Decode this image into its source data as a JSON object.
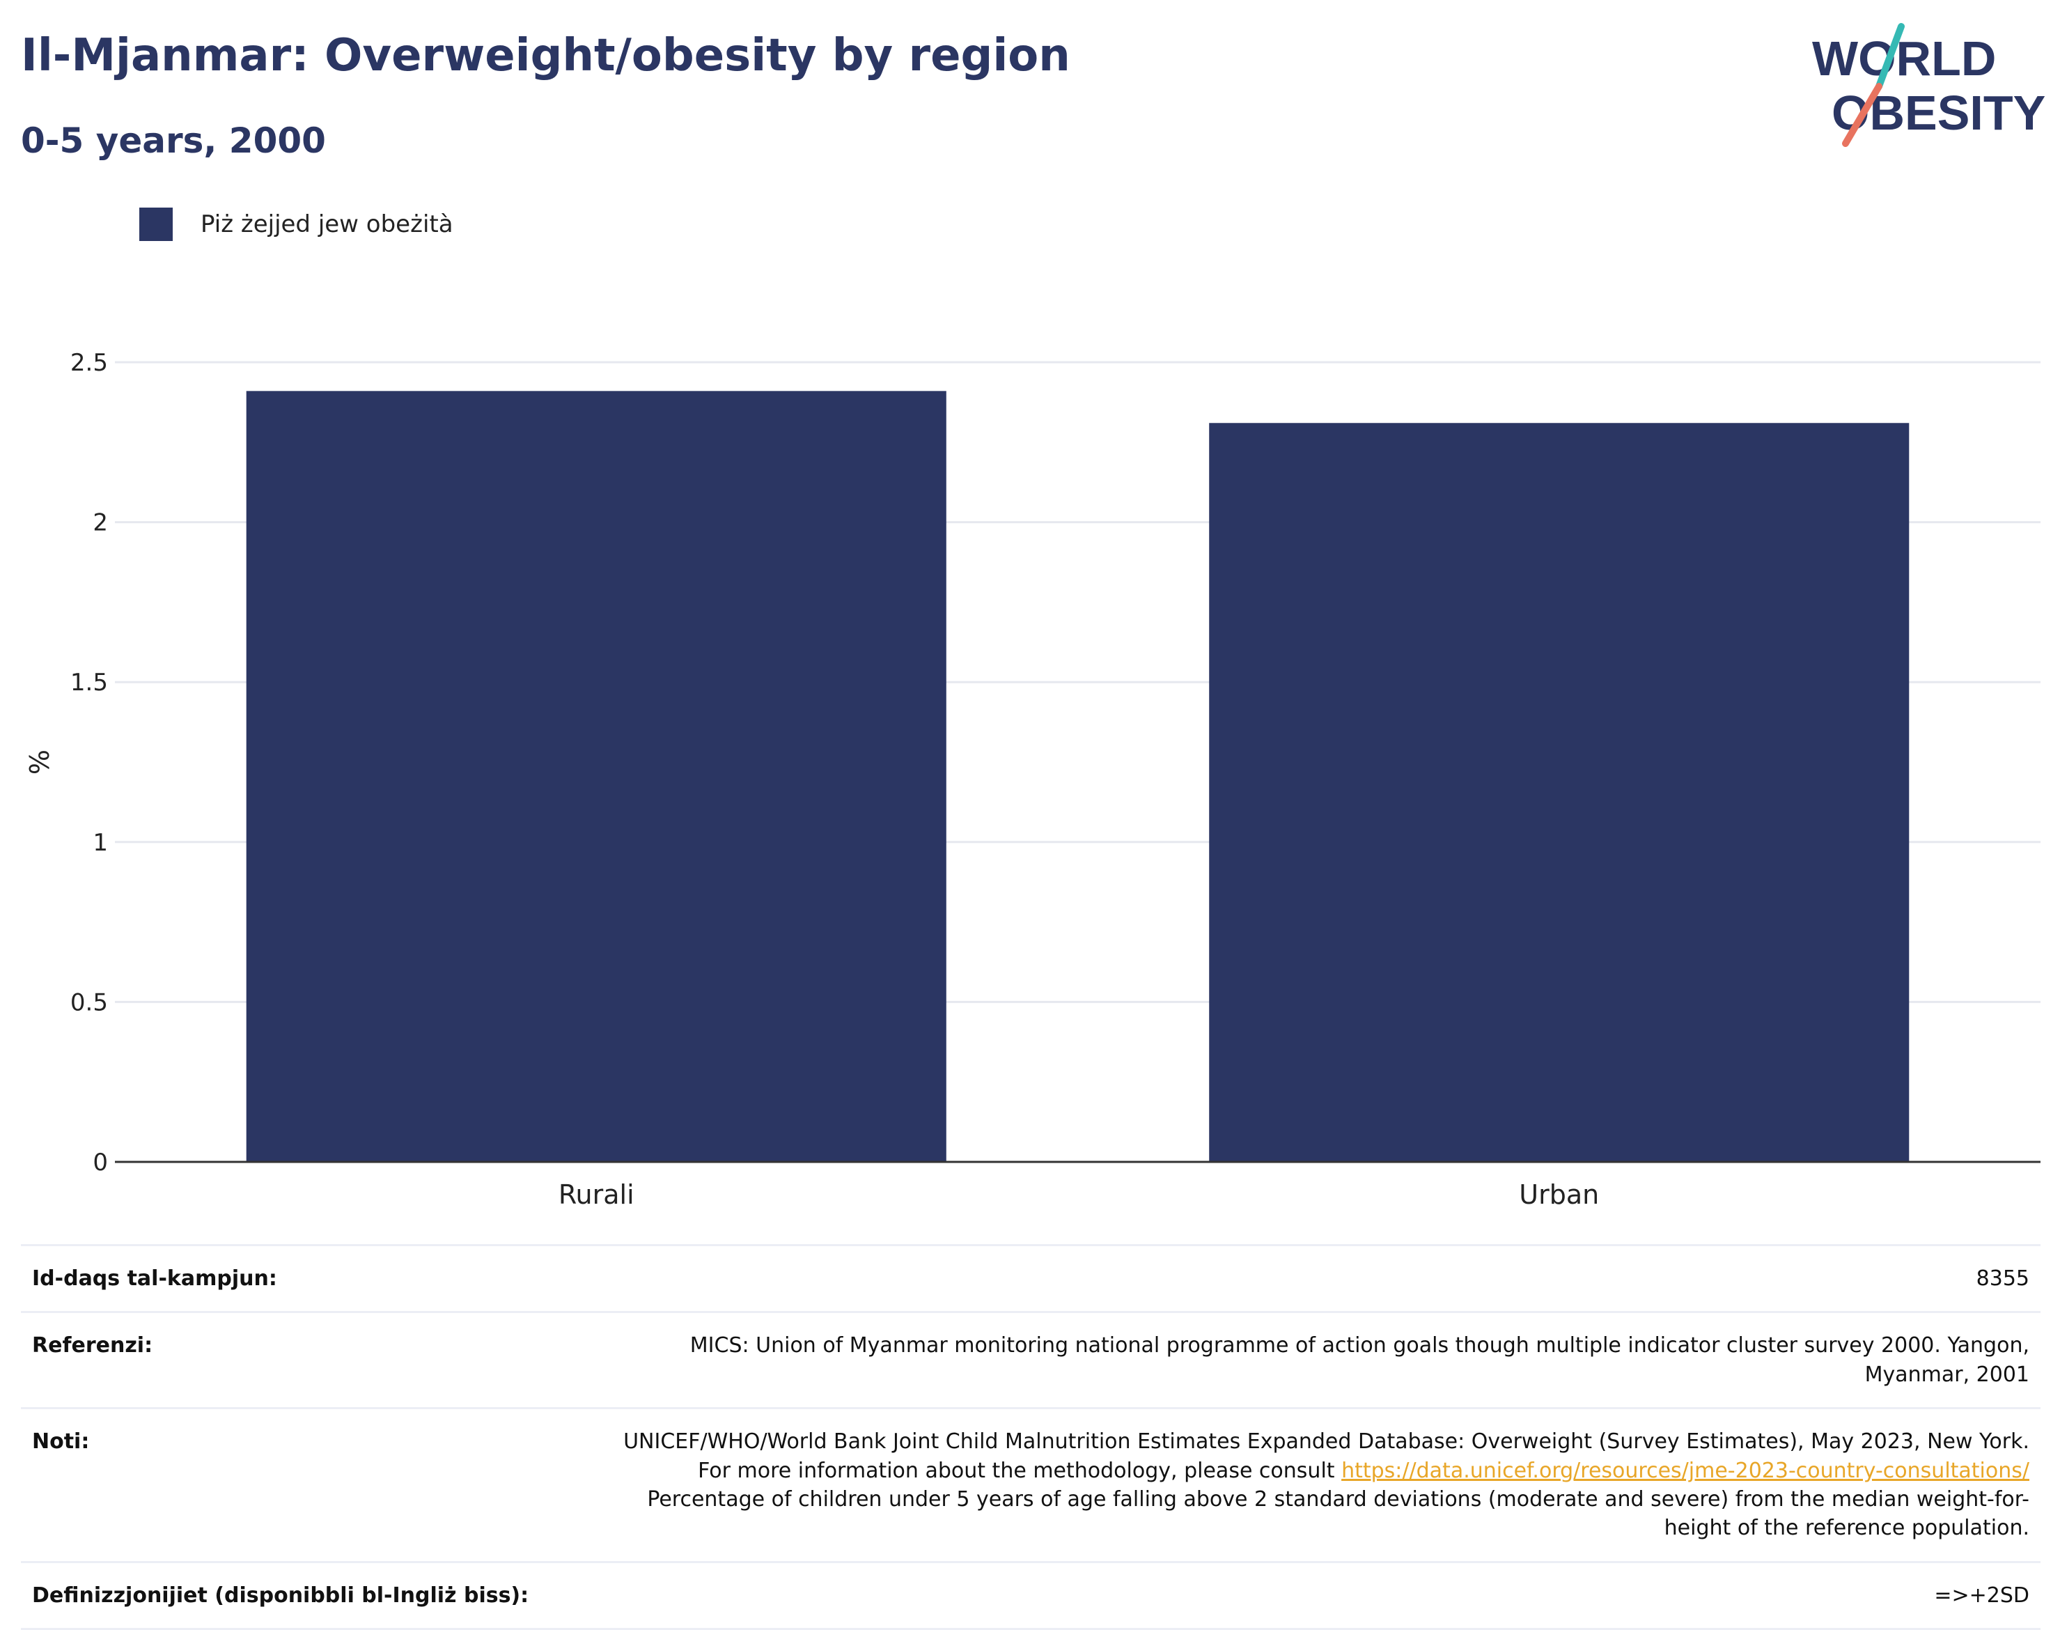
{
  "header": {
    "title": "Il-Mjanmar: Overweight/obesity by region",
    "subtitle": "0-5 years, 2000"
  },
  "logo": {
    "line1": "WORLD",
    "line2": "OBESITY"
  },
  "colors": {
    "bar": "#2b3663",
    "title": "#2b3663",
    "gridline": "#e6e8ef",
    "axis": "#333333",
    "link": "#e8a628",
    "logo_teal": "#35b9b4",
    "logo_coral": "#e8735f"
  },
  "chart_data": {
    "type": "bar",
    "categories": [
      "Rurali",
      "Urban"
    ],
    "series": [
      {
        "name": "Piż żejjed jew obeżità",
        "values": [
          2.41,
          2.31
        ]
      }
    ],
    "ylabel": "%",
    "xlabel": "",
    "ylim": [
      0,
      2.5
    ],
    "yticks": [
      0,
      0.5,
      1,
      1.5,
      2,
      2.5
    ],
    "ytick_labels": [
      "0",
      "0.5",
      "1",
      "1.5",
      "2",
      "2.5"
    ],
    "grid": true,
    "legend_position": "top-left"
  },
  "info": {
    "sample_size_label": "Id-daqs tal-kampjun:",
    "sample_size_value": "8355",
    "references_label": "Referenzi:",
    "references_value": "MICS: Union of Myanmar monitoring national programme of action goals though multiple indicator cluster survey 2000. Yangon, Myanmar, 2001",
    "notes_label": "Noti:",
    "notes_text_before": "UNICEF/WHO/World Bank Joint Child Malnutrition Estimates Expanded Database: Overweight (Survey Estimates), May 2023, New York. For more information about the methodology, please consult",
    "notes_link": "https://data.unicef.org/resources/jme-2023-country-consultations/",
    "notes_text_after": "Percentage of children under 5 years of age falling above 2 standard deviations (moderate and severe) from the median weight-for-height of the reference population.",
    "definitions_label": "Definizzjonijiet (disponibbli bl-Ingliż biss):",
    "definitions_value": "=>+2SD"
  }
}
